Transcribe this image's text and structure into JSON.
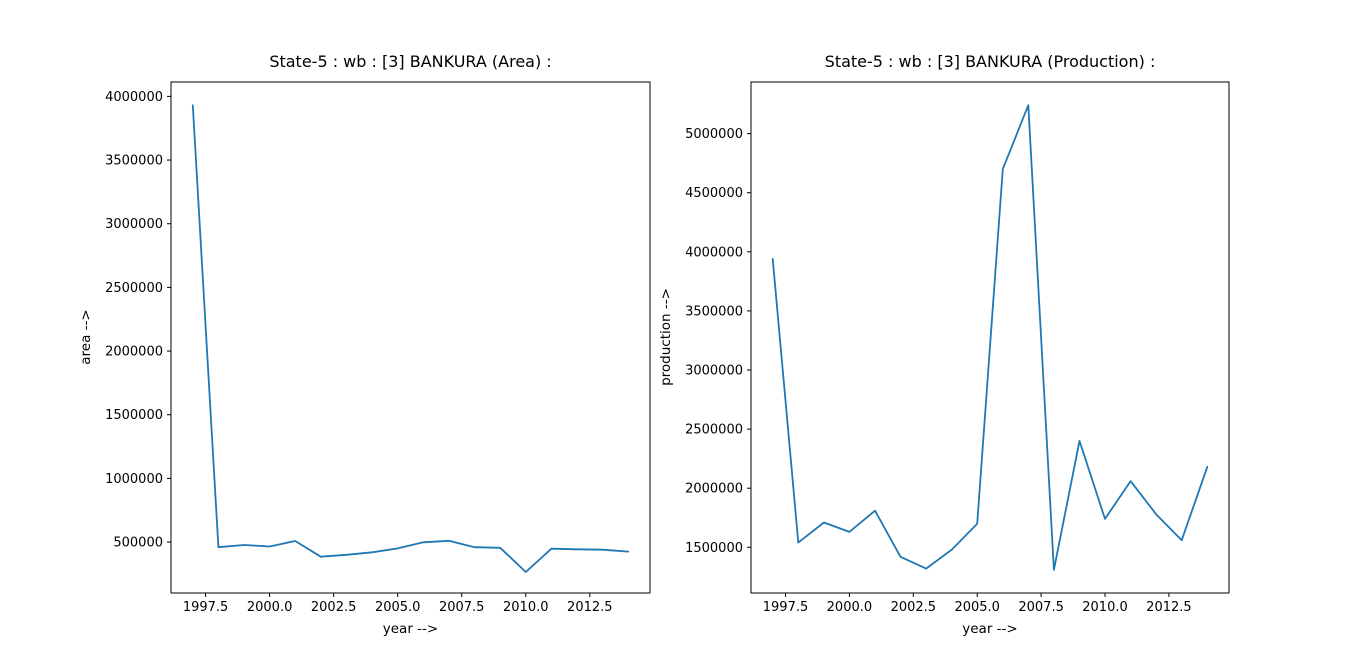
{
  "figure": {
    "background": "#ffffff",
    "text_color": "#000000",
    "spine_color": "#000000"
  },
  "chart_data": [
    {
      "type": "line",
      "title": "State-5 : wb : [3] BANKURA (Area) :",
      "xlabel": "year -->",
      "ylabel": "area -->",
      "line_color": "#1f77b4",
      "grid": false,
      "legend": "none",
      "x": [
        1997,
        1998,
        1999,
        2000,
        2001,
        2002,
        2003,
        2004,
        2005,
        2006,
        2007,
        2008,
        2009,
        2010,
        2011,
        2012,
        2013,
        2014
      ],
      "values": [
        3930000,
        460000,
        477000,
        465000,
        508000,
        385000,
        400000,
        420000,
        450000,
        498000,
        510000,
        460000,
        455000,
        265000,
        448000,
        443000,
        440000,
        425000
      ],
      "xlim": [
        1996.15,
        2014.85
      ],
      "ylim": [
        100000,
        4113000
      ],
      "xticks": [
        1997.5,
        2000.0,
        2002.5,
        2005.0,
        2007.5,
        2010.0,
        2012.5
      ],
      "xtick_labels": [
        "1997.5",
        "2000.0",
        "2002.5",
        "2005.0",
        "2007.5",
        "2010.0",
        "2012.5"
      ],
      "yticks": [
        500000,
        1000000,
        1500000,
        2000000,
        2500000,
        3000000,
        3500000,
        4000000
      ],
      "ytick_labels": [
        "500000",
        "1000000",
        "1500000",
        "2000000",
        "2500000",
        "3000000",
        "3500000",
        "4000000"
      ]
    },
    {
      "type": "line",
      "title": "State-5 : wb : [3] BANKURA (Production) :",
      "xlabel": "year -->",
      "ylabel": "production -->",
      "line_color": "#1f77b4",
      "grid": false,
      "legend": "none",
      "x": [
        1997,
        1998,
        1999,
        2000,
        2001,
        2002,
        2003,
        2004,
        2005,
        2006,
        2007,
        2008,
        2009,
        2010,
        2011,
        2012,
        2013,
        2014
      ],
      "values": [
        3940000,
        1540000,
        1710000,
        1630000,
        1810000,
        1420000,
        1320000,
        1480000,
        1700000,
        4700000,
        5240000,
        1310000,
        2400000,
        1740000,
        2060000,
        1780000,
        1560000,
        2180000
      ],
      "xlim": [
        1996.15,
        2014.85
      ],
      "ylim": [
        1113500,
        5436500
      ],
      "xticks": [
        1997.5,
        2000.0,
        2002.5,
        2005.0,
        2007.5,
        2010.0,
        2012.5
      ],
      "xtick_labels": [
        "1997.5",
        "2000.0",
        "2002.5",
        "2005.0",
        "2007.5",
        "2010.0",
        "2012.5"
      ],
      "yticks": [
        1500000,
        2000000,
        2500000,
        3000000,
        3500000,
        4000000,
        4500000,
        5000000
      ],
      "ytick_labels": [
        "1500000",
        "2000000",
        "2500000",
        "3000000",
        "3500000",
        "4000000",
        "4500000",
        "5000000"
      ]
    }
  ]
}
